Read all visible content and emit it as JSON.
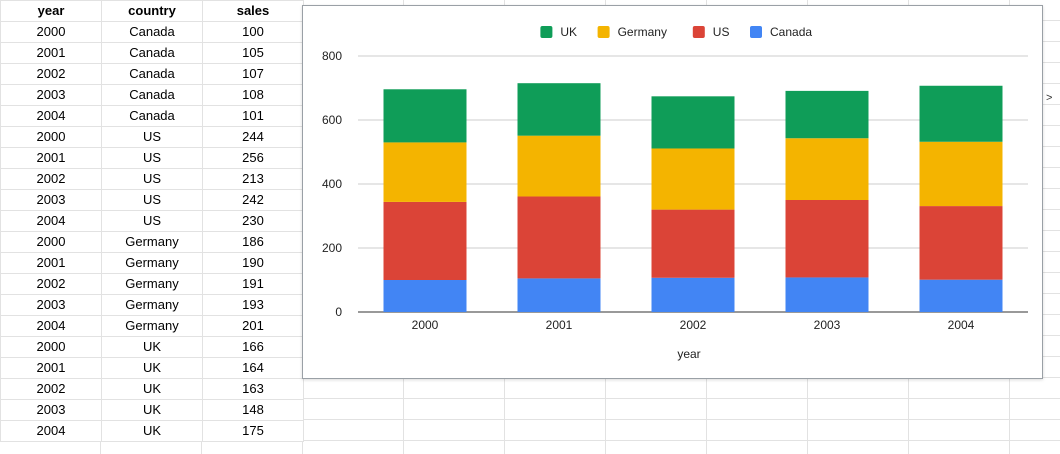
{
  "sheet": {
    "headers": [
      "year",
      "country",
      "sales"
    ],
    "rows": [
      [
        "2000",
        "Canada",
        "100"
      ],
      [
        "2001",
        "Canada",
        "105"
      ],
      [
        "2002",
        "Canada",
        "107"
      ],
      [
        "2003",
        "Canada",
        "108"
      ],
      [
        "2004",
        "Canada",
        "101"
      ],
      [
        "2000",
        "US",
        "244"
      ],
      [
        "2001",
        "US",
        "256"
      ],
      [
        "2002",
        "US",
        "213"
      ],
      [
        "2003",
        "US",
        "242"
      ],
      [
        "2004",
        "US",
        "230"
      ],
      [
        "2000",
        "Germany",
        "186"
      ],
      [
        "2001",
        "Germany",
        "190"
      ],
      [
        "2002",
        "Germany",
        "191"
      ],
      [
        "2003",
        "Germany",
        "193"
      ],
      [
        "2004",
        "Germany",
        "201"
      ],
      [
        "2000",
        "UK",
        "166"
      ],
      [
        "2001",
        "UK",
        "164"
      ],
      [
        "2002",
        "UK",
        "163"
      ],
      [
        "2003",
        "UK",
        "148"
      ],
      [
        "2004",
        "UK",
        "175"
      ]
    ]
  },
  "edge_glyph": ">",
  "chart_data": {
    "type": "bar",
    "stacked": true,
    "categories": [
      "2000",
      "2001",
      "2002",
      "2003",
      "2004"
    ],
    "series": [
      {
        "name": "Canada",
        "values": [
          100,
          105,
          107,
          108,
          101
        ],
        "color": "#4285f4"
      },
      {
        "name": "US",
        "values": [
          244,
          256,
          213,
          242,
          230
        ],
        "color": "#db4437"
      },
      {
        "name": "Germany",
        "values": [
          186,
          190,
          191,
          193,
          201
        ],
        "color": "#f4b400"
      },
      {
        "name": "UK",
        "values": [
          166,
          164,
          163,
          148,
          175
        ],
        "color": "#0f9d58"
      }
    ],
    "legend_order": [
      "UK",
      "Germany",
      "US",
      "Canada"
    ],
    "legend_position": "top",
    "xlabel": "year",
    "ylabel": "",
    "ylim": [
      0,
      800
    ],
    "yticks": [
      "0",
      "200",
      "400",
      "600",
      "800"
    ],
    "grid": true
  }
}
